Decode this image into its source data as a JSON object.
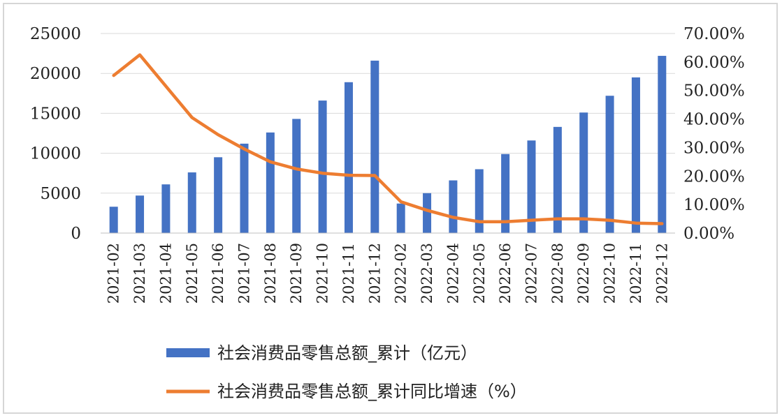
{
  "chart_data": {
    "type": "bar",
    "categories": [
      "2021-02",
      "2021-03",
      "2021-04",
      "2021-05",
      "2021-06",
      "2021-07",
      "2021-08",
      "2021-09",
      "2021-10",
      "2021-11",
      "2021-12",
      "2022-02",
      "2022-03",
      "2022-04",
      "2022-05",
      "2022-06",
      "2022-07",
      "2022-08",
      "2022-09",
      "2022-10",
      "2022-11",
      "2022-12"
    ],
    "series": [
      {
        "name": "社会消费品零售总额_累计（亿元）",
        "type": "bar",
        "axis": "left",
        "color": "#4472c4",
        "values": [
          3300,
          4700,
          6100,
          7600,
          9500,
          11200,
          12600,
          14300,
          16600,
          18900,
          21600,
          3700,
          5000,
          6600,
          8000,
          9900,
          11600,
          13300,
          15100,
          17200,
          19500,
          22200
        ]
      },
      {
        "name": "社会消费品零售总额_累计同比增速（%）",
        "type": "line",
        "axis": "right",
        "color": "#ed7d31",
        "values": [
          55.3,
          62.5,
          51.5,
          40.5,
          34.5,
          29.5,
          25.0,
          22.5,
          21.0,
          20.3,
          20.2,
          11.0,
          8.0,
          5.5,
          4.0,
          4.0,
          4.5,
          5.0,
          5.0,
          4.5,
          3.5,
          3.3
        ]
      }
    ],
    "y_left": {
      "ylim": [
        0,
        25000
      ],
      "ticks": [
        "0",
        "5000",
        "10000",
        "15000",
        "20000",
        "25000"
      ]
    },
    "y_right": {
      "ylim": [
        0,
        70
      ],
      "ticks": [
        "0.00%",
        "10.00%",
        "20.00%",
        "30.00%",
        "40.00%",
        "50.00%",
        "60.00%",
        "70.00%"
      ]
    },
    "grid": true,
    "legend_position": "bottom"
  }
}
